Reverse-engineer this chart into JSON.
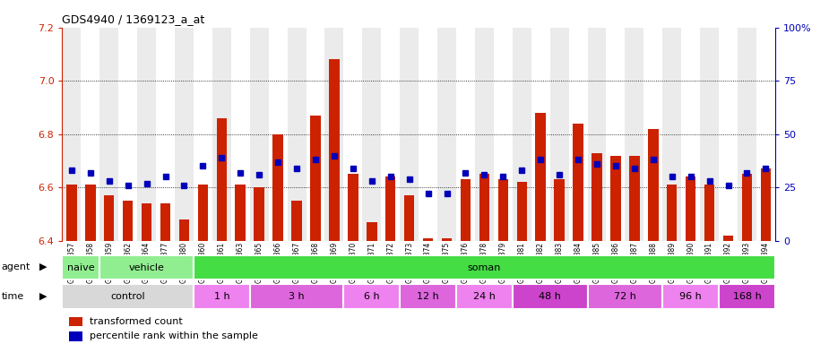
{
  "title": "GDS4940 / 1369123_a_at",
  "samples": [
    "GSM338857",
    "GSM338858",
    "GSM338859",
    "GSM338862",
    "GSM338864",
    "GSM338877",
    "GSM338880",
    "GSM338860",
    "GSM338861",
    "GSM338863",
    "GSM338865",
    "GSM338866",
    "GSM338867",
    "GSM338868",
    "GSM338869",
    "GSM338870",
    "GSM338871",
    "GSM338872",
    "GSM338873",
    "GSM338874",
    "GSM338875",
    "GSM338876",
    "GSM338878",
    "GSM338879",
    "GSM338881",
    "GSM338882",
    "GSM338883",
    "GSM338884",
    "GSM338885",
    "GSM338886",
    "GSM338887",
    "GSM338888",
    "GSM338889",
    "GSM338890",
    "GSM338891",
    "GSM338892",
    "GSM338893",
    "GSM338894"
  ],
  "red_values": [
    6.61,
    6.61,
    6.57,
    6.55,
    6.54,
    6.54,
    6.48,
    6.61,
    6.86,
    6.61,
    6.6,
    6.8,
    6.55,
    6.87,
    7.08,
    6.65,
    6.47,
    6.64,
    6.57,
    6.41,
    6.41,
    6.63,
    6.65,
    6.63,
    6.62,
    6.88,
    6.63,
    6.84,
    6.73,
    6.72,
    6.72,
    6.82,
    6.61,
    6.64,
    6.61,
    6.42,
    6.65,
    6.67
  ],
  "blue_values": [
    33,
    32,
    28,
    26,
    27,
    30,
    26,
    35,
    39,
    32,
    31,
    37,
    34,
    38,
    40,
    34,
    28,
    30,
    29,
    22,
    22,
    32,
    31,
    30,
    33,
    38,
    31,
    38,
    36,
    35,
    34,
    38,
    30,
    30,
    28,
    26,
    32,
    34
  ],
  "ylim_left": [
    6.4,
    7.2
  ],
  "ylim_right": [
    0,
    100
  ],
  "yticks_left": [
    6.4,
    6.6,
    6.8,
    7.0,
    7.2
  ],
  "yticks_right": [
    0,
    25,
    50,
    75,
    100
  ],
  "agent_groups": [
    {
      "label": "naive",
      "start": 0,
      "end": 2,
      "color": "#90EE90"
    },
    {
      "label": "vehicle",
      "start": 2,
      "end": 7,
      "color": "#90EE90"
    },
    {
      "label": "soman",
      "start": 7,
      "end": 38,
      "color": "#44DD44"
    }
  ],
  "time_groups": [
    {
      "label": "control",
      "start": 0,
      "end": 7,
      "color": "#D8D8D8"
    },
    {
      "label": "1 h",
      "start": 7,
      "end": 10,
      "color": "#EE82EE"
    },
    {
      "label": "3 h",
      "start": 10,
      "end": 15,
      "color": "#DD66DD"
    },
    {
      "label": "6 h",
      "start": 15,
      "end": 18,
      "color": "#EE82EE"
    },
    {
      "label": "12 h",
      "start": 18,
      "end": 21,
      "color": "#DD66DD"
    },
    {
      "label": "24 h",
      "start": 21,
      "end": 24,
      "color": "#EE82EE"
    },
    {
      "label": "48 h",
      "start": 24,
      "end": 28,
      "color": "#DD66DD"
    },
    {
      "label": "72 h",
      "start": 28,
      "end": 32,
      "color": "#CC44CC"
    },
    {
      "label": "96 h",
      "start": 32,
      "end": 35,
      "color": "#EE82EE"
    },
    {
      "label": "168 h",
      "start": 35,
      "end": 38,
      "color": "#CC44CC"
    }
  ],
  "bar_color": "#CC2200",
  "dot_color": "#0000BB",
  "base": 6.4
}
